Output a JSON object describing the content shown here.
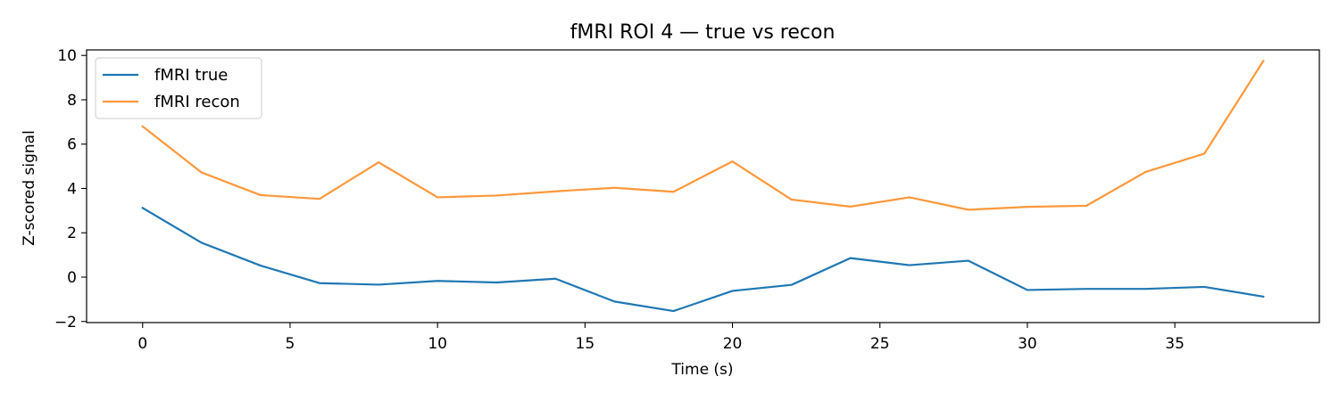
{
  "chart_data": {
    "type": "line",
    "title": "fMRI ROI 4 — true vs recon",
    "xlabel": "Time (s)",
    "ylabel": "Z-scored signal",
    "xlim": [
      -1.9,
      39.9
    ],
    "ylim": [
      -2.05,
      10.25
    ],
    "xticks": [
      0,
      5,
      10,
      15,
      20,
      25,
      30,
      35
    ],
    "yticks": [
      -2,
      0,
      2,
      4,
      6,
      8,
      10
    ],
    "grid": false,
    "legend_position": "top-left",
    "x": [
      0,
      2,
      4,
      6,
      8,
      10,
      12,
      14,
      16,
      18,
      20,
      22,
      24,
      26,
      28,
      30,
      32,
      34,
      36,
      38
    ],
    "series": [
      {
        "name": "fMRI true",
        "color": "#1f77b4",
        "values": [
          3.12,
          1.55,
          0.52,
          -0.27,
          -0.34,
          -0.17,
          -0.24,
          -0.07,
          -1.1,
          -1.53,
          -0.62,
          -0.35,
          0.86,
          0.54,
          0.74,
          -0.58,
          -0.53,
          -0.53,
          -0.44,
          -0.88
        ]
      },
      {
        "name": "fMRI recon",
        "color": "#ff983b",
        "values": [
          6.8,
          4.72,
          3.7,
          3.53,
          5.18,
          3.6,
          3.68,
          3.87,
          4.03,
          3.85,
          5.22,
          3.5,
          3.18,
          3.6,
          3.04,
          3.17,
          3.22,
          4.74,
          5.57,
          9.75
        ]
      }
    ]
  }
}
